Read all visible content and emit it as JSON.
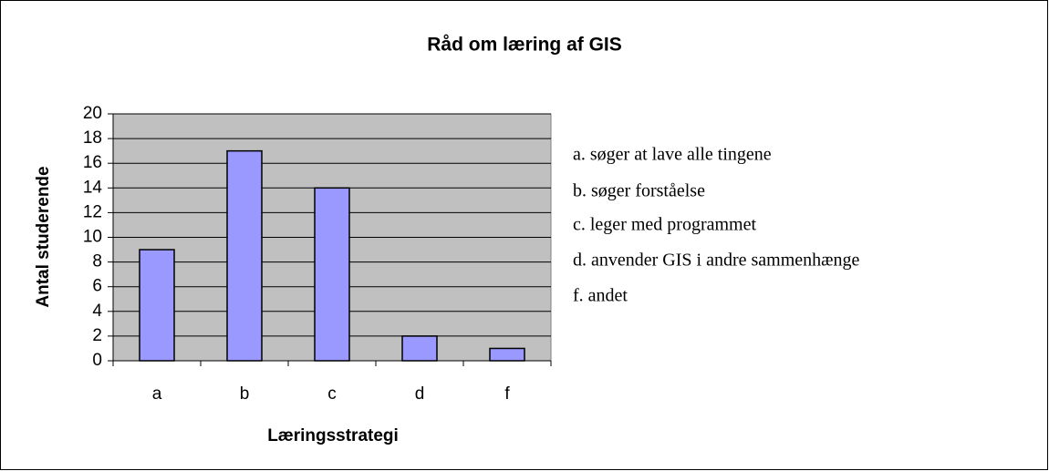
{
  "chart_data": {
    "type": "bar",
    "title": "Råd om læring af GIS",
    "x_label": "Læringsstrategi",
    "y_label": "Antal studerende",
    "categories": [
      "a",
      "b",
      "c",
      "d",
      "f"
    ],
    "values": [
      9,
      17,
      14,
      2,
      1
    ],
    "color": "#9999ff",
    "ylim": [
      0,
      20
    ],
    "yticks": [
      0,
      2,
      4,
      6,
      8,
      10,
      12,
      14,
      16,
      18,
      20
    ],
    "grid": true,
    "annotations": [
      "a. søger at lave alle tingene",
      "b. søger forståelse",
      "c. leger med programmet",
      "d. anvender GIS i andre sammenhænge",
      "f. andet"
    ]
  }
}
